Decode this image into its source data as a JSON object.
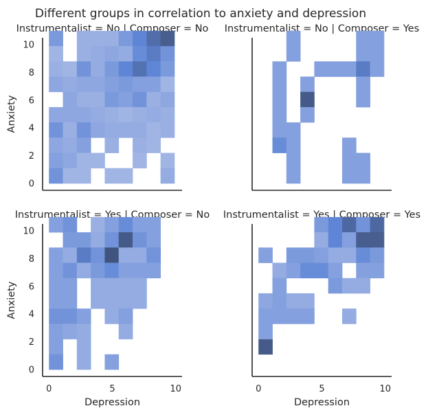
{
  "chart_data": {
    "type": "heatmap",
    "title": "Different groups in correlation to anxiety and depression",
    "xlabel": "Depression",
    "ylabel": "Anxiety",
    "xlim": [
      -0.5,
      10.5
    ],
    "ylim": [
      -0.5,
      10.5
    ],
    "x_ticks": [
      "0",
      "5",
      "10"
    ],
    "y_ticks": [
      "0",
      "2",
      "4",
      "6",
      "8",
      "10"
    ],
    "bin_width": 1.1,
    "bin_x_start": 0,
    "bin_y_start": 0,
    "grid": false,
    "colors": {
      "light": "#c6d1ee",
      "mid": "#8ea7e0",
      "strong": "#5f86d6",
      "dark": "#3b4a6b",
      "axis": "#262626"
    },
    "panels": [
      {
        "title": "Instrumentalist = No | Composer = No",
        "cells": [
          [
            0,
            9,
            0.55
          ],
          [
            2,
            9,
            0.35
          ],
          [
            3,
            9,
            0.35
          ],
          [
            4,
            9,
            0.35
          ],
          [
            5,
            9,
            0.55
          ],
          [
            6,
            9,
            0.7
          ],
          [
            7,
            9,
            0.82
          ],
          [
            8,
            9,
            0.9
          ],
          [
            0,
            8,
            0.3
          ],
          [
            2,
            8,
            0.35
          ],
          [
            3,
            8,
            0.4
          ],
          [
            4,
            8,
            0.45
          ],
          [
            5,
            8,
            0.4
          ],
          [
            6,
            8,
            0.65
          ],
          [
            7,
            8,
            0.75
          ],
          [
            8,
            8,
            0.6
          ],
          [
            0,
            7,
            0.35
          ],
          [
            1,
            7,
            0.3
          ],
          [
            2,
            7,
            0.6
          ],
          [
            3,
            7,
            0.4
          ],
          [
            4,
            7,
            0.55
          ],
          [
            5,
            7,
            0.7
          ],
          [
            6,
            7,
            0.8
          ],
          [
            7,
            7,
            0.7
          ],
          [
            8,
            7,
            0.55
          ],
          [
            0,
            6,
            0.45
          ],
          [
            1,
            6,
            0.4
          ],
          [
            2,
            6,
            0.45
          ],
          [
            3,
            6,
            0.45
          ],
          [
            4,
            6,
            0.5
          ],
          [
            5,
            6,
            0.55
          ],
          [
            6,
            6,
            0.5
          ],
          [
            7,
            6,
            0.5
          ],
          [
            8,
            6,
            0.3
          ],
          [
            1,
            5,
            0.45
          ],
          [
            2,
            5,
            0.35
          ],
          [
            3,
            5,
            0.35
          ],
          [
            4,
            5,
            0.55
          ],
          [
            5,
            5,
            0.5
          ],
          [
            6,
            5,
            0.6
          ],
          [
            7,
            5,
            0.35
          ],
          [
            8,
            5,
            0.45
          ],
          [
            0,
            4,
            0.45
          ],
          [
            1,
            4,
            0.45
          ],
          [
            2,
            4,
            0.45
          ],
          [
            3,
            4,
            0.4
          ],
          [
            4,
            4,
            0.35
          ],
          [
            5,
            4,
            0.3
          ],
          [
            6,
            4,
            0.35
          ],
          [
            7,
            4,
            0.4
          ],
          [
            8,
            4,
            0.35
          ],
          [
            0,
            3,
            0.6
          ],
          [
            1,
            3,
            0.35
          ],
          [
            2,
            3,
            0.6
          ],
          [
            3,
            3,
            0.45
          ],
          [
            4,
            3,
            0.4
          ],
          [
            5,
            3,
            0.4
          ],
          [
            6,
            3,
            0.4
          ],
          [
            7,
            3,
            0.3
          ],
          [
            8,
            3,
            0.35
          ],
          [
            0,
            2,
            0.45
          ],
          [
            1,
            2,
            0.4
          ],
          [
            2,
            2,
            0.5
          ],
          [
            4,
            2,
            0.35
          ],
          [
            6,
            2,
            0.35
          ],
          [
            7,
            2,
            0.3
          ],
          [
            0,
            1,
            0.5
          ],
          [
            1,
            1,
            0.45
          ],
          [
            2,
            1,
            0.3
          ],
          [
            3,
            1,
            0.3
          ],
          [
            6,
            1,
            0.3
          ],
          [
            8,
            1,
            0.3
          ],
          [
            0,
            0,
            0.6
          ],
          [
            1,
            0,
            0.3
          ],
          [
            2,
            0,
            0.3
          ],
          [
            4,
            0,
            0.3
          ],
          [
            5,
            0,
            0.3
          ],
          [
            8,
            0,
            0.4
          ]
        ]
      },
      {
        "title": "Instrumentalist = No | Composer = Yes",
        "cells": [
          [
            2,
            9,
            0.5
          ],
          [
            7,
            9,
            0.5
          ],
          [
            8,
            9,
            0.5
          ],
          [
            2,
            8,
            0.5
          ],
          [
            7,
            8,
            0.5
          ],
          [
            8,
            8,
            0.5
          ],
          [
            1,
            7,
            0.5
          ],
          [
            4,
            7,
            0.5
          ],
          [
            5,
            7,
            0.5
          ],
          [
            6,
            7,
            0.5
          ],
          [
            7,
            7,
            0.75
          ],
          [
            8,
            7,
            0.5
          ],
          [
            1,
            6,
            0.5
          ],
          [
            3,
            6,
            0.5
          ],
          [
            7,
            6,
            0.5
          ],
          [
            1,
            5,
            0.5
          ],
          [
            3,
            5,
            0.92
          ],
          [
            7,
            5,
            0.5
          ],
          [
            1,
            4,
            0.5
          ],
          [
            3,
            4,
            0.5
          ],
          [
            1,
            3,
            0.5
          ],
          [
            2,
            3,
            0.5
          ],
          [
            1,
            2,
            0.65
          ],
          [
            2,
            2,
            0.5
          ],
          [
            6,
            2,
            0.5
          ],
          [
            2,
            1,
            0.5
          ],
          [
            6,
            1,
            0.5
          ],
          [
            7,
            1,
            0.5
          ],
          [
            2,
            0,
            0.5
          ],
          [
            6,
            0,
            0.5
          ],
          [
            7,
            0,
            0.5
          ]
        ]
      },
      {
        "title": "Instrumentalist = Yes | Composer = No",
        "cells": [
          [
            0,
            9,
            0.5
          ],
          [
            1,
            9,
            0.6
          ],
          [
            3,
            9,
            0.35
          ],
          [
            4,
            9,
            0.5
          ],
          [
            5,
            9,
            0.65
          ],
          [
            6,
            9,
            0.5
          ],
          [
            7,
            9,
            0.5
          ],
          [
            1,
            8,
            0.55
          ],
          [
            2,
            8,
            0.55
          ],
          [
            3,
            8,
            0.4
          ],
          [
            4,
            8,
            0.6
          ],
          [
            5,
            8,
            0.92
          ],
          [
            6,
            8,
            0.6
          ],
          [
            7,
            8,
            0.5
          ],
          [
            0,
            7,
            0.5
          ],
          [
            1,
            7,
            0.4
          ],
          [
            2,
            7,
            0.75
          ],
          [
            3,
            7,
            0.6
          ],
          [
            4,
            7,
            0.95
          ],
          [
            5,
            7,
            0.4
          ],
          [
            6,
            7,
            0.4
          ],
          [
            7,
            7,
            0.6
          ],
          [
            0,
            6,
            0.5
          ],
          [
            1,
            6,
            0.6
          ],
          [
            2,
            6,
            0.4
          ],
          [
            3,
            6,
            0.55
          ],
          [
            4,
            6,
            0.65
          ],
          [
            5,
            6,
            0.5
          ],
          [
            6,
            6,
            0.5
          ],
          [
            7,
            6,
            0.5
          ],
          [
            0,
            5,
            0.5
          ],
          [
            1,
            5,
            0.5
          ],
          [
            3,
            5,
            0.4
          ],
          [
            4,
            5,
            0.4
          ],
          [
            5,
            5,
            0.4
          ],
          [
            6,
            5,
            0.4
          ],
          [
            0,
            4,
            0.5
          ],
          [
            1,
            4,
            0.5
          ],
          [
            3,
            4,
            0.4
          ],
          [
            4,
            4,
            0.4
          ],
          [
            5,
            4,
            0.4
          ],
          [
            6,
            4,
            0.4
          ],
          [
            0,
            3,
            0.6
          ],
          [
            1,
            3,
            0.6
          ],
          [
            2,
            3,
            0.5
          ],
          [
            4,
            3,
            0.4
          ],
          [
            5,
            3,
            0.5
          ],
          [
            0,
            2,
            0.5
          ],
          [
            1,
            2,
            0.45
          ],
          [
            2,
            2,
            0.4
          ],
          [
            5,
            2,
            0.4
          ],
          [
            0,
            1,
            0.5
          ],
          [
            2,
            1,
            0.4
          ],
          [
            0,
            0,
            0.6
          ],
          [
            2,
            0,
            0.4
          ],
          [
            4,
            0,
            0.5
          ]
        ]
      },
      {
        "title": "Instrumentalist = Yes | Composer = Yes",
        "cells": [
          [
            4,
            9,
            0.55
          ],
          [
            5,
            9,
            0.7
          ],
          [
            6,
            9,
            0.85
          ],
          [
            7,
            9,
            0.6
          ],
          [
            8,
            9,
            0.85
          ],
          [
            4,
            8,
            0.4
          ],
          [
            5,
            8,
            0.7
          ],
          [
            6,
            8,
            0.5
          ],
          [
            7,
            8,
            0.9
          ],
          [
            8,
            8,
            0.9
          ],
          [
            0,
            7,
            0.5
          ],
          [
            2,
            7,
            0.55
          ],
          [
            3,
            7,
            0.55
          ],
          [
            4,
            7,
            0.5
          ],
          [
            5,
            7,
            0.4
          ],
          [
            6,
            7,
            0.4
          ],
          [
            7,
            7,
            0.65
          ],
          [
            8,
            7,
            0.55
          ],
          [
            1,
            6,
            0.4
          ],
          [
            2,
            6,
            0.5
          ],
          [
            3,
            6,
            0.65
          ],
          [
            4,
            6,
            0.65
          ],
          [
            5,
            6,
            0.5
          ],
          [
            7,
            6,
            0.5
          ],
          [
            8,
            6,
            0.5
          ],
          [
            1,
            5,
            0.5
          ],
          [
            5,
            5,
            0.55
          ],
          [
            6,
            5,
            0.4
          ],
          [
            7,
            5,
            0.4
          ],
          [
            0,
            4,
            0.45
          ],
          [
            1,
            4,
            0.5
          ],
          [
            2,
            4,
            0.4
          ],
          [
            3,
            4,
            0.4
          ],
          [
            0,
            3,
            0.5
          ],
          [
            1,
            3,
            0.5
          ],
          [
            2,
            3,
            0.5
          ],
          [
            3,
            3,
            0.5
          ],
          [
            6,
            3,
            0.4
          ],
          [
            0,
            1,
            0.92
          ],
          [
            0,
            2,
            0.5
          ]
        ]
      }
    ]
  }
}
